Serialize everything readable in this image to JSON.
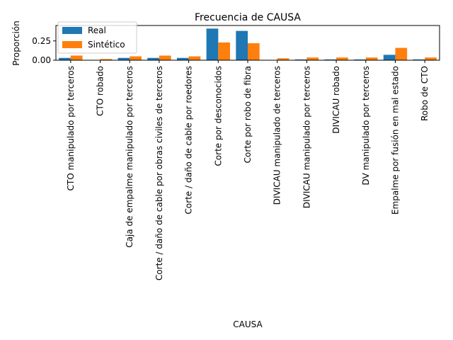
{
  "chart_data": {
    "type": "bar",
    "title": "Frecuencia de CAUSA",
    "xlabel": "CAUSA",
    "ylabel": "Proporción",
    "ylim": [
      0,
      0.45
    ],
    "yticks": [
      0.0,
      0.25
    ],
    "ytick_labels": [
      "0.00",
      "0.25"
    ],
    "grid": false,
    "legend_position": "upper-left",
    "categories": [
      "CTO manipulado por terceros",
      "CTO robado",
      "Caja de empalme manipulado por terceros",
      "Corte / daño de cable por obras civiles de terceros",
      "Corte / daño de cable por roedores",
      "Corte por desconocidos",
      "Corte por robo de fibra",
      "DIVICAU manipulado de terceros",
      "DIVICAU manipulado por terceros",
      "DIVICAU robado",
      "DV manipulado por terceros",
      "Empalme por fusión en mal estado",
      "Robo de CTO"
    ],
    "series": [
      {
        "name": "Real",
        "color": "#1f77b4",
        "values": [
          0.03,
          0.0,
          0.03,
          0.03,
          0.03,
          0.41,
          0.38,
          0.0,
          0.01,
          0.01,
          0.01,
          0.07,
          0.01
        ]
      },
      {
        "name": "Sintético",
        "color": "#ff7f0e",
        "values": [
          0.06,
          0.015,
          0.05,
          0.06,
          0.05,
          0.23,
          0.22,
          0.025,
          0.035,
          0.035,
          0.035,
          0.16,
          0.035
        ]
      }
    ]
  }
}
